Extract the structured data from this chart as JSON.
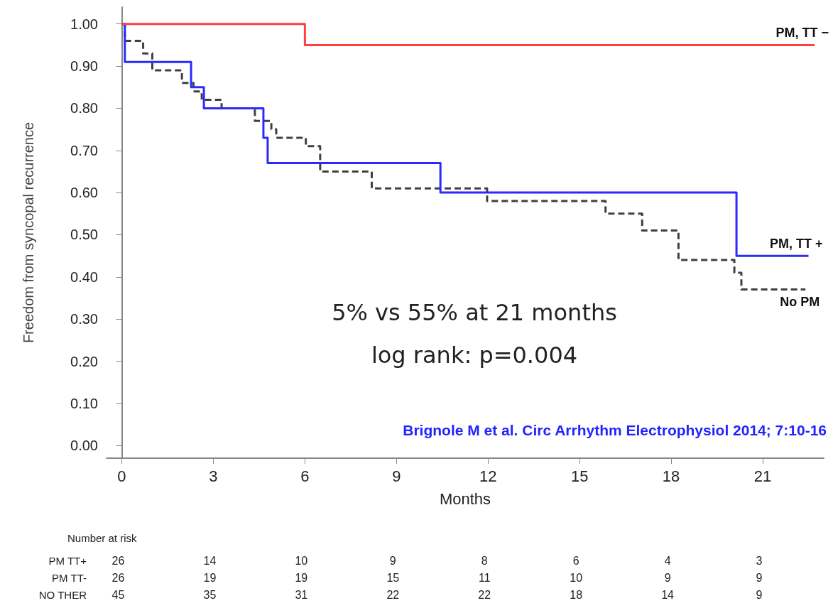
{
  "chart_data": {
    "type": "step",
    "ylabel": "Freedom from syncopal recurrence",
    "xlabel": "Months",
    "xlim": [
      -0.5,
      23
    ],
    "xticks": [
      0,
      3,
      6,
      9,
      12,
      15,
      18,
      21
    ],
    "ylim": [
      -0.03,
      1.04
    ],
    "yticks": [
      {
        "value": 0,
        "label": "0.00"
      },
      {
        "value": 0.1,
        "label": "0.10"
      },
      {
        "value": 0.2,
        "label": "0.20"
      },
      {
        "value": 0.3,
        "label": "0.30"
      },
      {
        "value": 0.4,
        "label": "0.40"
      },
      {
        "value": 0.5,
        "label": "0.50"
      },
      {
        "value": 0.6,
        "label": "0.60"
      },
      {
        "value": 0.7,
        "label": "0.70"
      },
      {
        "value": 0.8,
        "label": "0.80"
      },
      {
        "value": 0.9,
        "label": "0.90"
      },
      {
        "value": 1,
        "label": "1.00"
      }
    ],
    "grid": false,
    "legend": false,
    "marker": "none",
    "series": [
      {
        "name": "PM, TT −",
        "color": "#ff4040",
        "line_style": "solid",
        "x": [
          0,
          6,
          22.7
        ],
        "values": [
          1,
          0.95,
          0.95
        ]
      },
      {
        "name": "PM, TT +",
        "color": "#2a2aff",
        "line_style": "solid",
        "x": [
          0,
          0.1,
          2.27,
          2.69,
          4.64,
          4.78,
          10.44,
          20.14,
          22.5
        ],
        "values": [
          1,
          0.91,
          0.85,
          0.8,
          0.73,
          0.67,
          0.6,
          0.45,
          0.45
        ]
      },
      {
        "name": "No PM",
        "color": "#404040",
        "line_style": "dashed",
        "x": [
          0,
          0.1,
          0.7,
          1.0,
          1.97,
          2.35,
          2.62,
          3.27,
          4.36,
          4.9,
          5.06,
          6.03,
          6.5,
          8.19,
          11.97,
          15.85,
          17.05,
          18.24,
          20.07,
          20.3,
          22.4
        ],
        "values": [
          1,
          0.96,
          0.93,
          0.89,
          0.86,
          0.84,
          0.82,
          0.8,
          0.77,
          0.75,
          0.73,
          0.71,
          0.65,
          0.61,
          0.58,
          0.55,
          0.51,
          0.44,
          0.41,
          0.37,
          0.37
        ]
      }
    ],
    "annotations": [
      "5% vs 55% at 21 months",
      "log rank: p=0.004",
      "Brignole M et al. Circ Arrhythm Electrophysiol 2014; 7:10-16",
      "Number at risk",
      "PM TT+",
      "PM TT-",
      "NO THER",
      "26",
      "14",
      "10",
      "9",
      "8",
      "6",
      "4",
      "3",
      "26",
      "19",
      "19",
      "15",
      "11",
      "10",
      "9",
      "9",
      "45",
      "35",
      "31",
      "22",
      "22",
      "18",
      "14",
      "9"
    ]
  }
}
